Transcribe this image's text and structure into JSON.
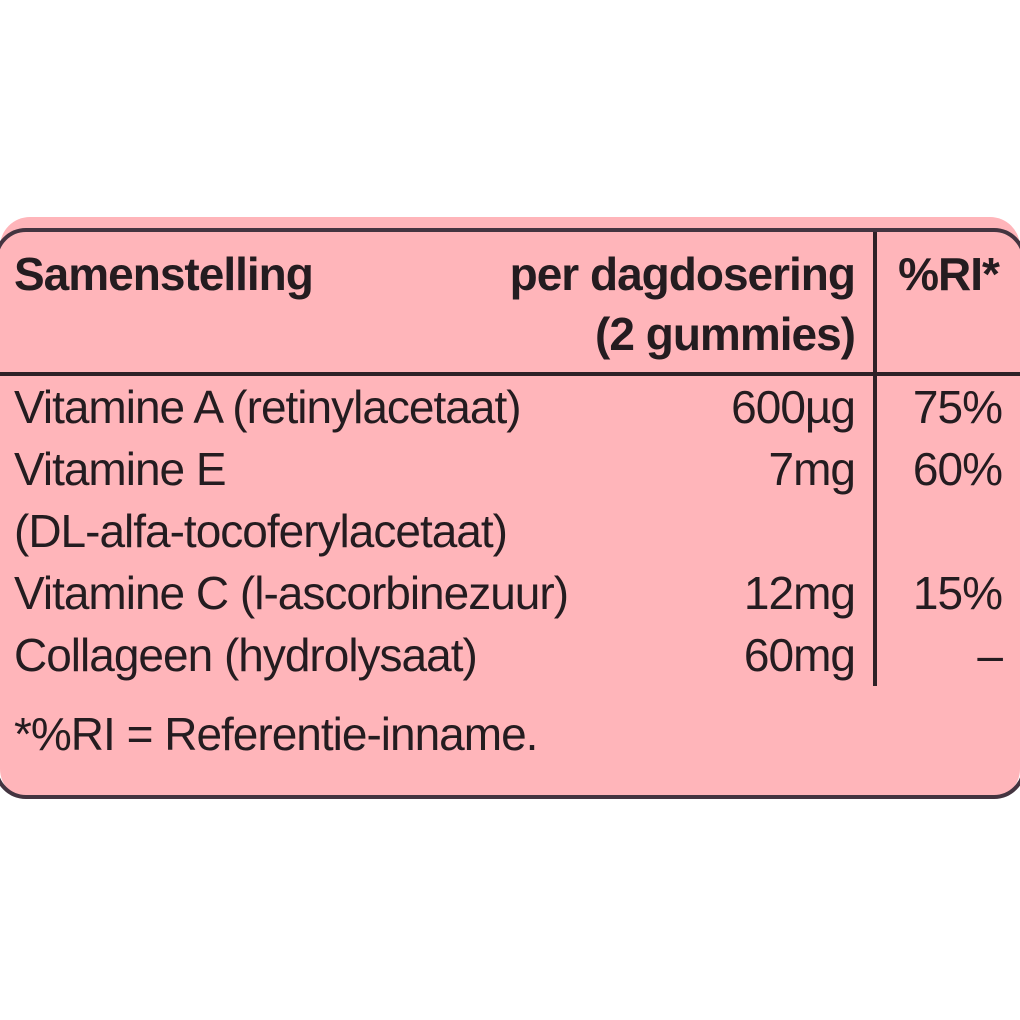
{
  "colors": {
    "card_background": "#ffb5ba",
    "card_border": "#443440",
    "rule_lines": "#2e2127",
    "text": "#241c20",
    "page_background": "#ffffff"
  },
  "table": {
    "header": {
      "composition_label": "Samenstelling",
      "dose_label_line1": "per dagdosering",
      "dose_label_line2": "(2 gummies)",
      "ri_label": "%RI*"
    },
    "rows": [
      {
        "name": "Vitamine A (retinylacetaat)",
        "amount": "600µg",
        "ri": "75%"
      },
      {
        "name": "Vitamine E",
        "amount": "7mg",
        "ri": "60%"
      },
      {
        "name": "(DL-alfa-tocoferylacetaat)",
        "amount": "",
        "ri": ""
      },
      {
        "name": "Vitamine C (l-ascorbinezuur)",
        "amount": "12mg",
        "ri": "15%"
      },
      {
        "name": "Collageen (hydrolysaat)",
        "amount": "60mg",
        "ri": "–"
      }
    ],
    "footnote": "*%RI = Referentie-inname."
  }
}
